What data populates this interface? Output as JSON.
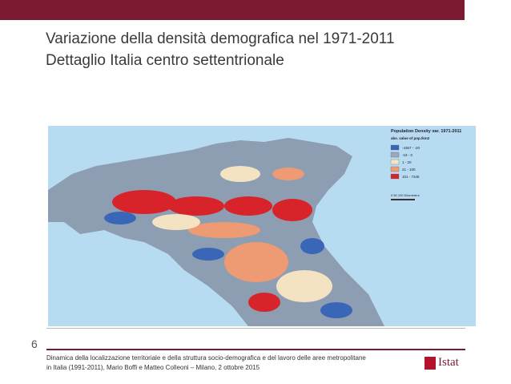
{
  "header": {
    "title": "Variazione della densità demografica nel 1971-2011",
    "subtitle": "Dettaglio Italia centro settentrionale"
  },
  "map": {
    "legend": {
      "title": "Population Density var. 1971-2011",
      "subtitle": "abs. value of pop./km2",
      "items": [
        {
          "label": "-4367 - -20",
          "color": "#3a66b8"
        },
        {
          "label": "-19 - 0",
          "color": "#9aa9bd"
        },
        {
          "label": "1 - 20",
          "color": "#f3e3c3"
        },
        {
          "label": "21 - 100",
          "color": "#ee9a72"
        },
        {
          "label": "101 - 7345",
          "color": "#d8232a"
        }
      ],
      "scale": "0    50   100 Kilometers"
    }
  },
  "page_number": "6",
  "footer": {
    "line1": "Dinamica della localizzazione territoriale e della struttura socio-demografica e del lavoro delle aree metropolitane",
    "line2": "in Italia (1991-2011), Mario Boffi e Matteo Colleoni – Milano, 2 ottobre 2015"
  },
  "logo": "Istat"
}
